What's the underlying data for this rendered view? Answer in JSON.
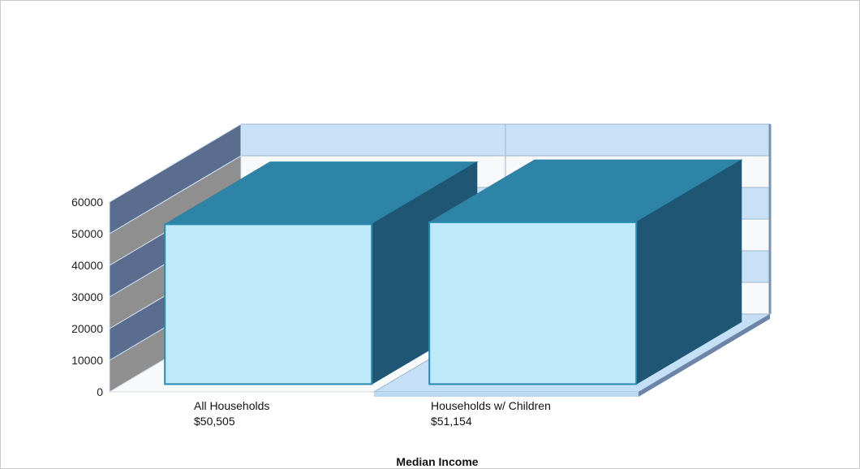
{
  "chart_data": {
    "type": "bar",
    "style": "3d",
    "title": "",
    "xlabel": "Median Income",
    "ylabel": "",
    "categories": [
      "All Households",
      "Households w/ Children"
    ],
    "value_labels": [
      "$50,505",
      "$51,154"
    ],
    "values": [
      50505,
      51154
    ],
    "ylim": [
      0,
      60000
    ],
    "yticks": [
      0,
      10000,
      20000,
      30000,
      40000,
      50000,
      60000
    ],
    "grid": true,
    "legend": "none",
    "colors": {
      "bar_front": "#bde9f8",
      "bar_top": "#2e84a7",
      "bar_side": "#1f5674",
      "bar_edge": "#2a8ab0",
      "back_wall_light": "#c8e1f7",
      "back_wall_alt": "#f7f9fa",
      "side_wall_dark": "#5a6d8e",
      "side_wall_gray": "#8f8f8f",
      "floor": "#c5dff7"
    }
  }
}
